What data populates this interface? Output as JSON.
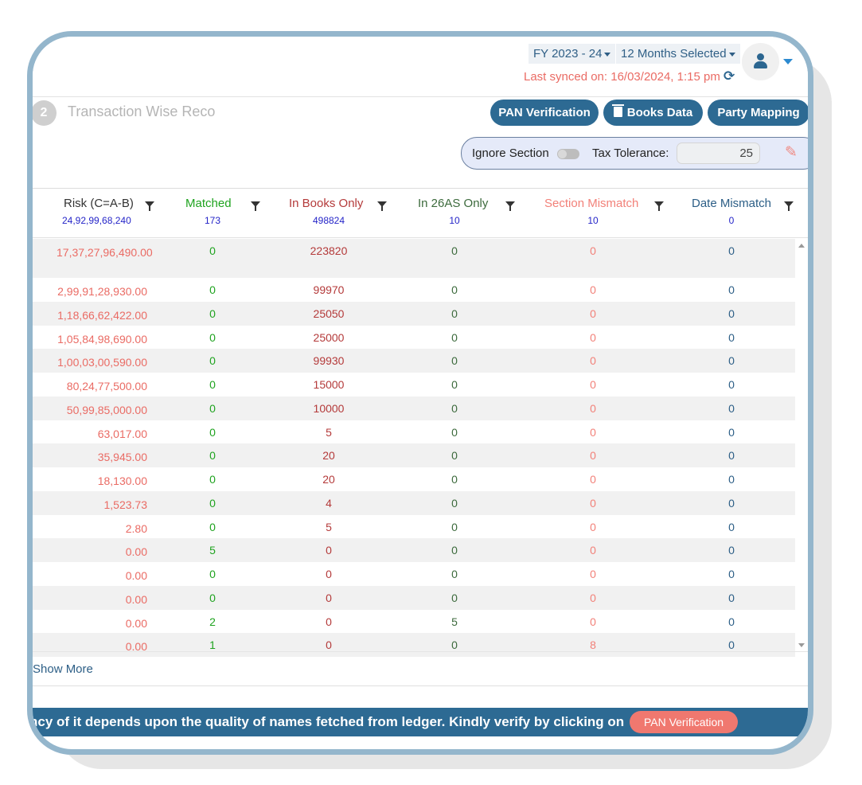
{
  "header": {
    "fy_label": "FY 2023 - 24",
    "months_label": "12 Months Selected",
    "last_synced": "Last synced on: 16/03/2024, 1:15 pm"
  },
  "step": {
    "number": "2",
    "title": "Transaction Wise Reco"
  },
  "toolbar": {
    "pan_verification": "PAN Verification",
    "books_data": "Books Data",
    "party_mapping": "Party Mapping"
  },
  "tolerance": {
    "ignore_section_label": "Ignore Section",
    "tax_tolerance_label": "Tax Tolerance:",
    "tax_tolerance_value": "25"
  },
  "table": {
    "columns": [
      {
        "label": "Risk (C=A-B)",
        "total": "24,92,99,68,240"
      },
      {
        "label": "Matched",
        "total": "173"
      },
      {
        "label": "In Books Only",
        "total": "498824"
      },
      {
        "label": "In 26AS Only",
        "total": "10"
      },
      {
        "label": "Section Mismatch",
        "total": "10"
      },
      {
        "label": "Date Mismatch",
        "total": "0"
      }
    ],
    "rows": [
      {
        "risk": "17,37,27,96,490.00",
        "matched": "0",
        "books": "223820",
        "as26": "0",
        "section": "0",
        "date": "0"
      },
      {
        "risk": "2,99,91,28,930.00",
        "matched": "0",
        "books": "99970",
        "as26": "0",
        "section": "0",
        "date": "0"
      },
      {
        "risk": "1,18,66,62,422.00",
        "matched": "0",
        "books": "25050",
        "as26": "0",
        "section": "0",
        "date": "0"
      },
      {
        "risk": "1,05,84,98,690.00",
        "matched": "0",
        "books": "25000",
        "as26": "0",
        "section": "0",
        "date": "0"
      },
      {
        "risk": "1,00,03,00,590.00",
        "matched": "0",
        "books": "99930",
        "as26": "0",
        "section": "0",
        "date": "0"
      },
      {
        "risk": "80,24,77,500.00",
        "matched": "0",
        "books": "15000",
        "as26": "0",
        "section": "0",
        "date": "0"
      },
      {
        "risk": "50,99,85,000.00",
        "matched": "0",
        "books": "10000",
        "as26": "0",
        "section": "0",
        "date": "0"
      },
      {
        "risk": "63,017.00",
        "matched": "0",
        "books": "5",
        "as26": "0",
        "section": "0",
        "date": "0"
      },
      {
        "risk": "35,945.00",
        "matched": "0",
        "books": "20",
        "as26": "0",
        "section": "0",
        "date": "0"
      },
      {
        "risk": "18,130.00",
        "matched": "0",
        "books": "20",
        "as26": "0",
        "section": "0",
        "date": "0"
      },
      {
        "risk": "1,523.73",
        "matched": "0",
        "books": "4",
        "as26": "0",
        "section": "0",
        "date": "0"
      },
      {
        "risk": "2.80",
        "matched": "0",
        "books": "5",
        "as26": "0",
        "section": "0",
        "date": "0"
      },
      {
        "risk": "0.00",
        "matched": "5",
        "books": "0",
        "as26": "0",
        "section": "0",
        "date": "0"
      },
      {
        "risk": "0.00",
        "matched": "0",
        "books": "0",
        "as26": "0",
        "section": "0",
        "date": "0"
      },
      {
        "risk": "0.00",
        "matched": "0",
        "books": "0",
        "as26": "0",
        "section": "0",
        "date": "0"
      },
      {
        "risk": "0.00",
        "matched": "2",
        "books": "0",
        "as26": "5",
        "section": "0",
        "date": "0"
      },
      {
        "risk": "0.00",
        "matched": "1",
        "books": "0",
        "as26": "0",
        "section": "8",
        "date": "0"
      }
    ]
  },
  "show_more": "Show More",
  "banner": {
    "text": "ncy of it depends upon the quality of names fetched from ledger. Kindly verify by clicking on",
    "button": "PAN Verification"
  },
  "colors": {
    "primary": "#2d6a93",
    "risk": "#ea6b64",
    "matched": "#1fa31f",
    "frame": "#94b6cc"
  }
}
